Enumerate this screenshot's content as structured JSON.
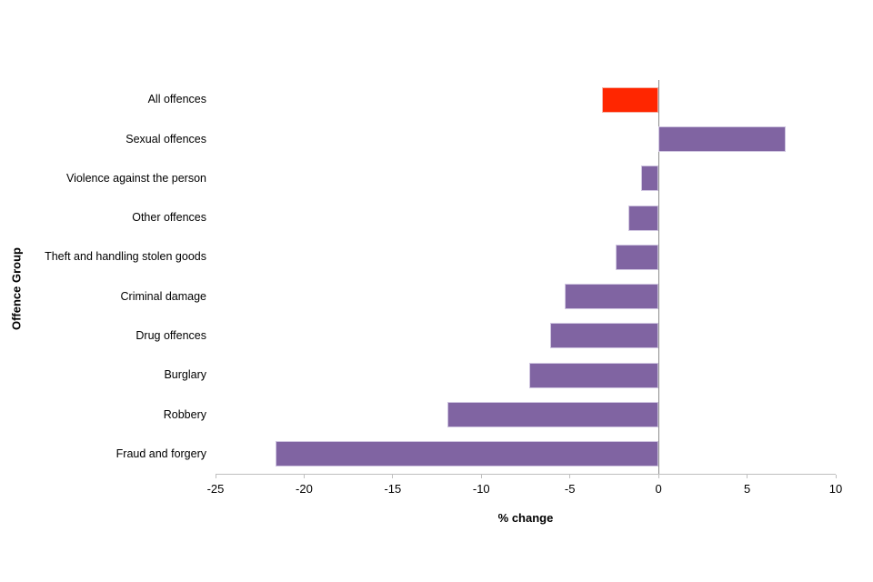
{
  "chart_data": {
    "type": "bar",
    "orientation": "horizontal",
    "title": "",
    "xlabel": "% change",
    "ylabel": "Offence Group",
    "xlim": [
      -25,
      10
    ],
    "xtick_labels": [
      "-25",
      "-20",
      "-15",
      "-10",
      "-5",
      "0",
      "5",
      "10"
    ],
    "xtick_values": [
      -25,
      -20,
      -15,
      -10,
      -5,
      0,
      5,
      10
    ],
    "grid": "off",
    "legend": "none",
    "categories": [
      "All offences",
      "Sexual offences",
      "Violence against the person",
      "Other offences",
      "Theft and handling stolen goods",
      "Criminal damage",
      "Drug offences",
      "Burglary",
      "Robbery",
      "Fraud and forgery"
    ],
    "values": [
      -3.2,
      7.2,
      -1.0,
      -1.7,
      -2.4,
      -5.3,
      -6.1,
      -7.3,
      -11.9,
      -21.6
    ],
    "bar_colors": [
      "#ff2600",
      "#8064a2",
      "#8064a2",
      "#8064a2",
      "#8064a2",
      "#8064a2",
      "#8064a2",
      "#8064a2",
      "#8064a2",
      "#8064a2"
    ],
    "bar_border_colors": [
      "#f6b4a8",
      "#cfc5e0",
      "#cfc5e0",
      "#cfc5e0",
      "#cfc5e0",
      "#cfc5e0",
      "#cfc5e0",
      "#cfc5e0",
      "#cfc5e0",
      "#cfc5e0"
    ],
    "colors": {
      "highlight_bar": "#ff2600",
      "default_bar": "#8064a2",
      "axis_line": "#bfbfbf",
      "zero_line": "#8c8c8c",
      "text": "#000000",
      "background": "#ffffff"
    }
  }
}
